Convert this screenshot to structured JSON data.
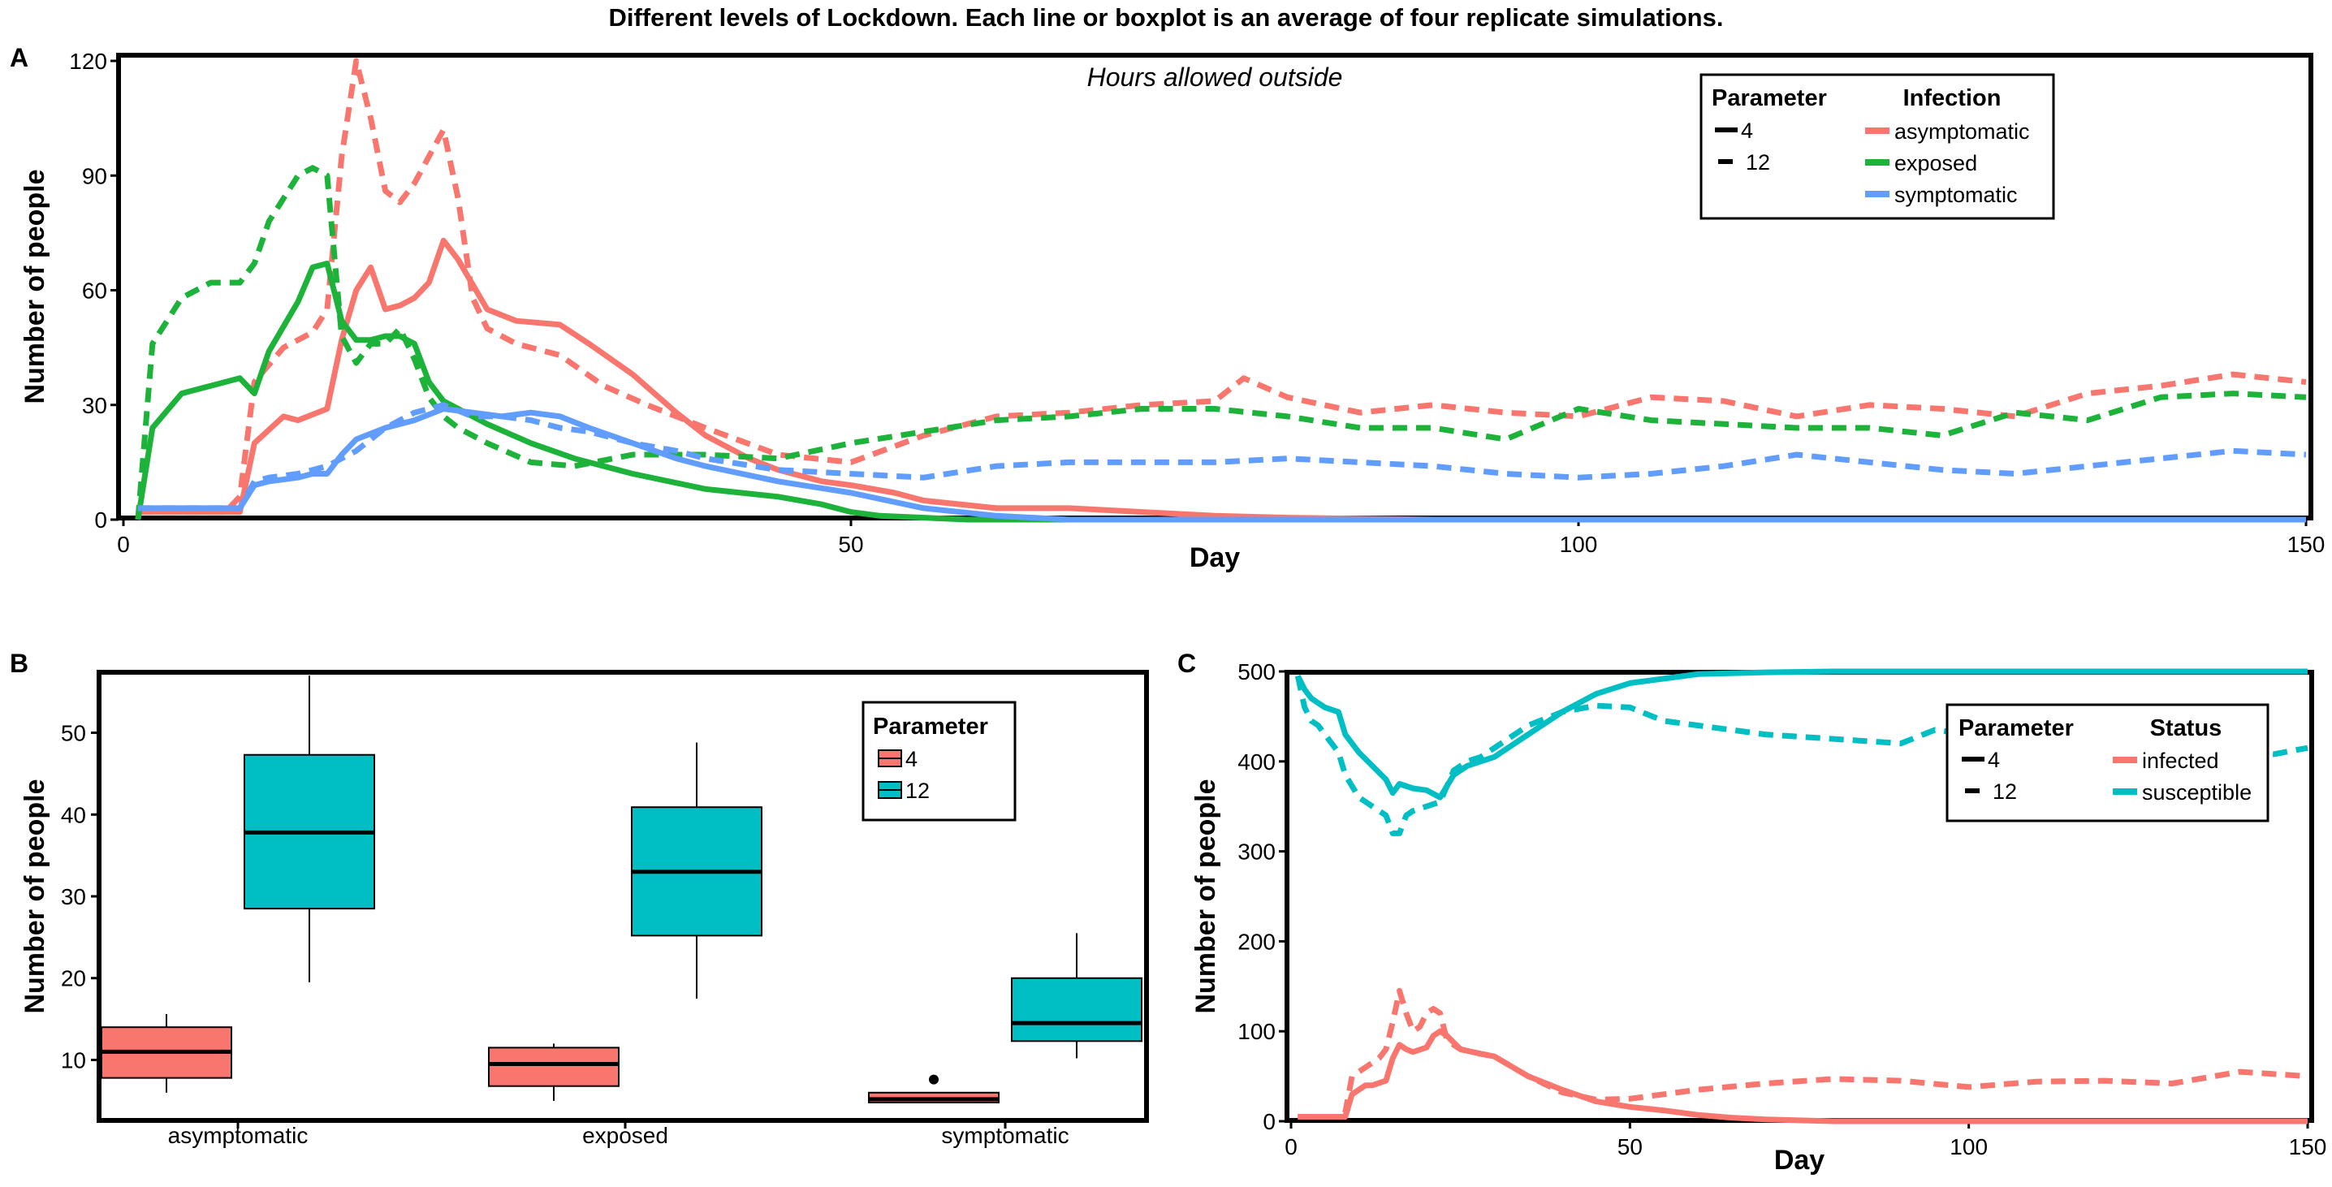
{
  "figure": {
    "title": "Different levels of Lockdown. Each line or boxplot is an average of four replicate simulations."
  },
  "colors": {
    "asymptomatic": "#F8766D",
    "exposed": "#1DB33A",
    "symptomatic": "#619CFF",
    "infected": "#F8766D",
    "susceptible": "#00BFC4",
    "box4": "#F8766D",
    "box12": "#00BFC4"
  },
  "chart_data": [
    {
      "panel": "A",
      "type": "line",
      "annotation": "Hours allowed outside",
      "xlabel": "Day",
      "ylabel": "Number of people",
      "xlim": [
        0,
        150
      ],
      "ylim": [
        0,
        120
      ],
      "xticks": [
        0,
        50,
        100,
        150
      ],
      "yticks": [
        0,
        30,
        60,
        90,
        120
      ],
      "legend": {
        "position": "top-right",
        "param_title": "Parameter",
        "param_items": [
          "4",
          "12"
        ],
        "group_title": "Infection",
        "group_items": [
          "asymptomatic",
          "exposed",
          "symptomatic"
        ]
      },
      "series": [
        {
          "name": "asymptomatic",
          "param": "4",
          "x": [
            1,
            7,
            8,
            9,
            11,
            12,
            14,
            15,
            16,
            17,
            18,
            19,
            20,
            21,
            22,
            23,
            25,
            27,
            30,
            32,
            35,
            38,
            40,
            43,
            45,
            48,
            50,
            53,
            55,
            60,
            65,
            70,
            75,
            80,
            90,
            150
          ],
          "y": [
            2,
            2,
            2,
            20,
            27,
            26,
            29,
            47,
            60,
            66,
            55,
            56,
            58,
            62,
            73,
            68,
            55,
            52,
            51,
            46,
            38,
            28,
            22,
            16,
            13,
            10,
            9,
            7,
            5,
            3,
            3,
            2,
            1,
            0.5,
            0,
            0
          ]
        },
        {
          "name": "asymptomatic",
          "param": "12",
          "x": [
            1,
            7,
            8,
            9,
            11,
            13,
            14,
            15,
            16,
            17,
            18,
            19,
            20,
            21,
            22,
            23,
            24,
            25,
            27,
            30,
            33,
            36,
            40,
            45,
            50,
            55,
            60,
            65,
            70,
            75,
            77,
            80,
            85,
            90,
            95,
            100,
            105,
            110,
            115,
            120,
            125,
            130,
            135,
            140,
            145,
            150
          ],
          "y": [
            2,
            2,
            6,
            36,
            45,
            49,
            55,
            95,
            120,
            105,
            86,
            83,
            88,
            95,
            102,
            84,
            58,
            50,
            46,
            43,
            35,
            30,
            24,
            17,
            15,
            22,
            27,
            28,
            30,
            31,
            37,
            32,
            28,
            30,
            28,
            27,
            32,
            31,
            27,
            30,
            29,
            27,
            33,
            35,
            38,
            36
          ]
        },
        {
          "name": "exposed",
          "param": "4",
          "x": [
            1,
            2,
            4,
            6,
            8,
            9,
            10,
            12,
            13,
            14,
            15,
            16,
            17,
            18,
            19,
            20,
            21,
            22,
            23,
            25,
            28,
            31,
            35,
            40,
            45,
            48,
            50,
            52,
            55,
            58,
            60,
            150
          ],
          "y": [
            0,
            24,
            33,
            35,
            37,
            33,
            44,
            57,
            66,
            67,
            52,
            47,
            47,
            48,
            48,
            46,
            36,
            31,
            29,
            25,
            20,
            16,
            12,
            8,
            6,
            4,
            2,
            1,
            0.5,
            0,
            0,
            0
          ]
        },
        {
          "name": "exposed",
          "param": "12",
          "x": [
            1,
            2,
            4,
            6,
            8,
            9,
            10,
            12,
            13,
            14,
            15,
            16,
            17,
            18,
            19,
            20,
            21,
            22,
            23,
            25,
            28,
            31,
            35,
            40,
            45,
            50,
            55,
            60,
            65,
            70,
            75,
            80,
            85,
            90,
            95,
            100,
            105,
            110,
            115,
            120,
            125,
            130,
            135,
            140,
            145,
            150
          ],
          "y": [
            0,
            46,
            58,
            62,
            62,
            67,
            78,
            90,
            92,
            90,
            48,
            41,
            46,
            46,
            50,
            42,
            32,
            27,
            24,
            20,
            15,
            14,
            17,
            17,
            16,
            20,
            23,
            26,
            27,
            29,
            29,
            27,
            24,
            24,
            21,
            29,
            26,
            25,
            24,
            24,
            22,
            28,
            26,
            32,
            33,
            32
          ]
        },
        {
          "name": "symptomatic",
          "param": "4",
          "x": [
            1,
            7,
            8,
            9,
            10,
            12,
            13,
            14,
            15,
            16,
            18,
            20,
            22,
            24,
            26,
            28,
            30,
            32,
            35,
            38,
            40,
            45,
            50,
            55,
            60,
            65,
            150
          ],
          "y": [
            3,
            3,
            3,
            9,
            10,
            11,
            12,
            12,
            17,
            21,
            24,
            26,
            29,
            28,
            27,
            28,
            27,
            24,
            20,
            16,
            14,
            10,
            7,
            3,
            1,
            0,
            0
          ]
        },
        {
          "name": "symptomatic",
          "param": "12",
          "x": [
            1,
            7,
            8,
            9,
            10,
            12,
            14,
            16,
            18,
            20,
            22,
            24,
            26,
            28,
            30,
            32,
            35,
            38,
            40,
            45,
            50,
            55,
            60,
            65,
            70,
            75,
            80,
            85,
            90,
            95,
            100,
            105,
            110,
            115,
            120,
            125,
            130,
            135,
            140,
            145,
            150
          ],
          "y": [
            3,
            3,
            3,
            10,
            11,
            12,
            14,
            18,
            24,
            28,
            30,
            27,
            27,
            26,
            24,
            23,
            20,
            18,
            16,
            13,
            12,
            11,
            14,
            15,
            15,
            15,
            16,
            15,
            14,
            12,
            11,
            12,
            14,
            17,
            15,
            13,
            12,
            14,
            16,
            18,
            17
          ]
        }
      ]
    },
    {
      "panel": "B",
      "type": "box",
      "ylabel": "Number of people",
      "ylim": [
        3,
        57
      ],
      "yticks": [
        10,
        20,
        30,
        40,
        50
      ],
      "categories": [
        "asymptomatic",
        "exposed",
        "symptomatic"
      ],
      "legend": {
        "position": "top-right",
        "title": "Parameter",
        "items": [
          "4",
          "12"
        ]
      },
      "series": [
        {
          "name": "4",
          "boxes": [
            {
              "category": "asymptomatic",
              "whisker_low": 6,
              "q1": 7.8,
              "median": 11,
              "q3": 14,
              "whisker_high": 15.6,
              "outliers": []
            },
            {
              "category": "exposed",
              "whisker_low": 5,
              "q1": 6.8,
              "median": 9.5,
              "q3": 11.5,
              "whisker_high": 12,
              "outliers": []
            },
            {
              "category": "symptomatic",
              "whisker_low": 4.8,
              "q1": 4.8,
              "median": 5.2,
              "q3": 6,
              "whisker_high": 6,
              "outliers": [
                7.6
              ]
            }
          ]
        },
        {
          "name": "12",
          "boxes": [
            {
              "category": "asymptomatic",
              "whisker_low": 19.5,
              "q1": 28.5,
              "median": 37.8,
              "q3": 47.3,
              "whisker_high": 57,
              "outliers": []
            },
            {
              "category": "exposed",
              "whisker_low": 17.5,
              "q1": 25.2,
              "median": 33,
              "q3": 40.9,
              "whisker_high": 48.8,
              "outliers": []
            },
            {
              "category": "symptomatic",
              "whisker_low": 10.2,
              "q1": 12.3,
              "median": 14.5,
              "q3": 20,
              "whisker_high": 25.5,
              "outliers": []
            }
          ]
        }
      ]
    },
    {
      "panel": "C",
      "type": "line",
      "xlabel": "Day",
      "ylabel": "Number of people",
      "xlim": [
        0,
        150
      ],
      "ylim": [
        0,
        500
      ],
      "xticks": [
        0,
        50,
        100,
        150
      ],
      "yticks": [
        0,
        100,
        200,
        300,
        400,
        500
      ],
      "legend": {
        "position": "top-right",
        "param_title": "Parameter",
        "param_items": [
          "4",
          "12"
        ],
        "group_title": "Status",
        "group_items": [
          "infected",
          "susceptible"
        ]
      },
      "series": [
        {
          "name": "infected",
          "param": "4",
          "x": [
            1,
            7,
            8,
            9,
            11,
            12,
            14,
            15,
            16,
            17,
            18,
            20,
            21,
            22,
            23,
            25,
            28,
            30,
            35,
            40,
            45,
            50,
            55,
            60,
            65,
            70,
            80,
            150
          ],
          "y": [
            5,
            5,
            5,
            30,
            40,
            40,
            45,
            70,
            85,
            80,
            77,
            82,
            95,
            100,
            95,
            80,
            75,
            72,
            50,
            35,
            22,
            16,
            12,
            7,
            4,
            2,
            0,
            0
          ]
        },
        {
          "name": "infected",
          "param": "12",
          "x": [
            1,
            7,
            8,
            9,
            11,
            13,
            14,
            15,
            16,
            17,
            18,
            19,
            20,
            21,
            22,
            23,
            25,
            28,
            30,
            35,
            40,
            45,
            50,
            60,
            70,
            80,
            90,
            100,
            110,
            120,
            130,
            140,
            150
          ],
          "y": [
            5,
            5,
            10,
            50,
            60,
            70,
            80,
            110,
            145,
            120,
            100,
            105,
            120,
            125,
            120,
            90,
            80,
            75,
            72,
            50,
            32,
            24,
            25,
            35,
            42,
            47,
            45,
            38,
            44,
            45,
            42,
            55,
            50
          ]
        },
        {
          "name": "susceptible",
          "param": "4",
          "x": [
            1,
            2,
            3,
            4,
            5,
            7,
            8,
            10,
            12,
            14,
            15,
            16,
            18,
            20,
            22,
            24,
            26,
            28,
            30,
            35,
            40,
            45,
            50,
            55,
            60,
            70,
            80,
            150
          ],
          "y": [
            495,
            480,
            470,
            465,
            460,
            455,
            430,
            410,
            395,
            380,
            365,
            375,
            370,
            368,
            360,
            385,
            395,
            400,
            405,
            430,
            455,
            475,
            487,
            492,
            497,
            499,
            500,
            500
          ]
        },
        {
          "name": "susceptible",
          "param": "12",
          "x": [
            1,
            2,
            3,
            4,
            5,
            7,
            8,
            10,
            12,
            14,
            15,
            16,
            17,
            18,
            20,
            22,
            24,
            26,
            28,
            30,
            35,
            40,
            45,
            50,
            55,
            60,
            65,
            70,
            80,
            90,
            95,
            100,
            110,
            120,
            130,
            140,
            145,
            150
          ],
          "y": [
            495,
            460,
            445,
            440,
            430,
            410,
            385,
            360,
            350,
            340,
            320,
            320,
            340,
            345,
            350,
            355,
            390,
            400,
            405,
            415,
            440,
            455,
            462,
            460,
            445,
            440,
            435,
            430,
            425,
            420,
            435,
            430,
            425,
            420,
            415,
            410,
            408,
            415
          ]
        }
      ]
    }
  ]
}
